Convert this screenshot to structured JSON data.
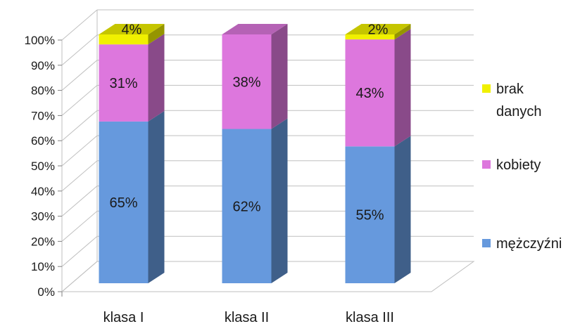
{
  "chart_data": {
    "type": "bar",
    "stacked": true,
    "percent": true,
    "style": "3d-column",
    "categories": [
      "klasa I",
      "klasa II",
      "klasa III"
    ],
    "series": [
      {
        "name": "mężczyźni",
        "color": "#6699DD",
        "values": [
          65,
          62,
          55
        ],
        "labels": [
          "65%",
          "62%",
          "55%"
        ]
      },
      {
        "name": "kobiety",
        "color": "#DD77DD",
        "values": [
          31,
          38,
          43
        ],
        "labels": [
          "31%",
          "38%",
          "43%"
        ]
      },
      {
        "name": "brak danych",
        "color": "#F0F000",
        "values": [
          4,
          0,
          2
        ],
        "labels": [
          "4%",
          "",
          "2%"
        ]
      }
    ],
    "y_ticks": [
      "0%",
      "10%",
      "20%",
      "30%",
      "40%",
      "50%",
      "60%",
      "70%",
      "80%",
      "90%",
      "100%"
    ],
    "ylim": [
      0,
      100
    ],
    "grid": true,
    "legend_position": "right",
    "legend_order": [
      "brak danych",
      "kobiety",
      "mężczyźni"
    ],
    "legend_text_lines": {
      "brak danych": [
        "brak",
        "danych"
      ],
      "kobiety": [
        "kobiety"
      ],
      "mężczyźni": [
        "mężczyźni"
      ]
    }
  }
}
